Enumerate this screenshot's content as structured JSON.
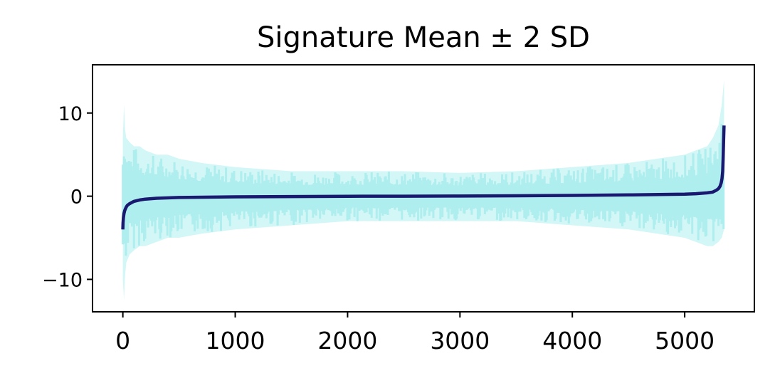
{
  "chart_data": {
    "type": "line",
    "title": "Signature Mean ± 2 SD",
    "xlabel": "",
    "ylabel": "",
    "xlim": [
      -270,
      5620
    ],
    "ylim": [
      -13.9,
      15.8
    ],
    "x_ticks": [
      0,
      1000,
      2000,
      3000,
      4000,
      5000
    ],
    "x_tick_labels": [
      "0",
      "1000",
      "2000",
      "3000",
      "4000",
      "5000"
    ],
    "y_ticks": [
      -10,
      0,
      10
    ],
    "y_tick_labels": [
      "−10",
      "0",
      "10"
    ],
    "grid": false,
    "legend": "none",
    "series": [
      {
        "role": "band",
        "color": "#afeeee",
        "x": [
          0,
          10,
          20,
          30,
          60,
          100,
          150,
          200,
          300,
          400,
          500,
          700,
          1000,
          1500,
          2000,
          2500,
          3000,
          3500,
          4000,
          4500,
          5000,
          5100,
          5200,
          5250,
          5300,
          5330,
          5350
        ],
        "upper": [
          7,
          11,
          8,
          7,
          6.5,
          6,
          6,
          5.5,
          5,
          5,
          4.5,
          4,
          3.5,
          3,
          3,
          3,
          2.8,
          3,
          3.5,
          4,
          5,
          5.5,
          6,
          7,
          8.5,
          11,
          14
        ],
        "lower": [
          -10,
          -12.5,
          -9.5,
          -8,
          -7,
          -6.5,
          -6,
          -6,
          -5.5,
          -5,
          -5,
          -4.5,
          -4,
          -3.5,
          -3,
          -3,
          -3,
          -3,
          -3.5,
          -4,
          -5,
          -5.5,
          -6,
          -6,
          -5.5,
          -5,
          -4
        ]
      },
      {
        "role": "mean",
        "color": "#191970",
        "x": [
          0,
          2,
          5,
          10,
          15,
          20,
          30,
          40,
          60,
          80,
          100,
          150,
          200,
          300,
          500,
          1000,
          1500,
          2000,
          2500,
          3000,
          3500,
          4000,
          4500,
          5000,
          5100,
          5200,
          5250,
          5280,
          5300,
          5315,
          5325,
          5332,
          5338,
          5342,
          5346,
          5350
        ],
        "values": [
          -4,
          -3.2,
          -2.6,
          -2.1,
          -1.8,
          -1.6,
          -1.3,
          -1.1,
          -0.9,
          -0.75,
          -0.62,
          -0.45,
          -0.35,
          -0.25,
          -0.15,
          -0.08,
          -0.04,
          -0.01,
          0,
          0.02,
          0.05,
          0.09,
          0.15,
          0.25,
          0.3,
          0.4,
          0.5,
          0.7,
          0.9,
          1.2,
          1.6,
          2.1,
          3,
          4.5,
          6.5,
          8.5
        ]
      }
    ]
  }
}
